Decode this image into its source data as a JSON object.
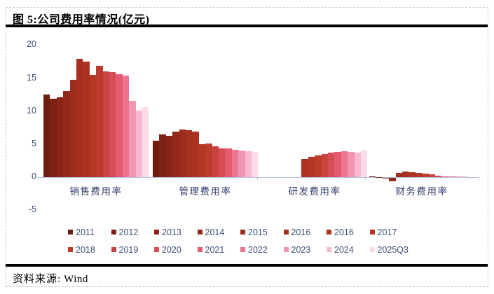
{
  "title": "图 5:公司费用率情况(亿元)",
  "source": {
    "label": "资料来源:",
    "value": "Wind"
  },
  "colors": {
    "axis_line": "#b0bce6",
    "tick_label": "#3d5078",
    "category_label": "#303c6c",
    "rule": "#000000",
    "background": "#ffffff"
  },
  "chart_data": {
    "type": "bar",
    "title": "图 5:公司费用率情况(亿元)",
    "xlabel": "",
    "ylabel": "",
    "ylim": [
      -5,
      20
    ],
    "yticks": [
      20,
      15,
      10,
      5,
      0,
      -5
    ],
    "grid": false,
    "legend_position": "bottom",
    "categories": [
      "销售费用率",
      "管理费用率",
      "研发费用率",
      "财务费用率"
    ],
    "series": [
      {
        "name": "2011",
        "color": "#701c10",
        "values": [
          12.5,
          5.5,
          0,
          0.15
        ]
      },
      {
        "name": "2012",
        "color": "#7d2114",
        "values": [
          11.9,
          6.5,
          0,
          0.05
        ]
      },
      {
        "name": "2013",
        "color": "#892517",
        "values": [
          12.1,
          6.3,
          0,
          -0.1
        ]
      },
      {
        "name": "2014",
        "color": "#94291a",
        "values": [
          13.0,
          6.9,
          0,
          -0.55
        ]
      },
      {
        "name": "2015",
        "color": "#9d2d1d",
        "values": [
          14.7,
          7.2,
          0,
          0.6
        ]
      },
      {
        "name": "2016",
        "color": "#a5301f",
        "values": [
          17.9,
          7.1,
          0,
          0.8
        ]
      },
      {
        "name": "2016",
        "color": "#ac3321",
        "values": [
          17.5,
          6.9,
          2.8,
          0.75
        ]
      },
      {
        "name": "2017",
        "color": "#b33724",
        "values": [
          15.5,
          5.0,
          3.1,
          0.65
        ]
      },
      {
        "name": "2018",
        "color": "#bc3c2b",
        "values": [
          16.9,
          5.1,
          3.3,
          0.5
        ]
      },
      {
        "name": "2019",
        "color": "#c94441",
        "values": [
          16.0,
          4.7,
          3.5,
          0.4
        ]
      },
      {
        "name": "2020",
        "color": "#d74d55",
        "values": [
          15.9,
          4.4,
          3.7,
          0.25
        ]
      },
      {
        "name": "2021",
        "color": "#e35b6f",
        "values": [
          15.6,
          4.3,
          3.85,
          0.15
        ]
      },
      {
        "name": "2022",
        "color": "#ec748f",
        "values": [
          15.4,
          4.1,
          3.9,
          0.12
        ]
      },
      {
        "name": "2023",
        "color": "#f295b2",
        "values": [
          11.6,
          4.0,
          3.8,
          0.12
        ]
      },
      {
        "name": "2024",
        "color": "#f7b8d0",
        "values": [
          10.1,
          3.9,
          3.75,
          0.08
        ]
      },
      {
        "name": "2025Q3",
        "color": "#fbdae9",
        "values": [
          10.6,
          3.8,
          4.0,
          -0.06
        ]
      }
    ]
  }
}
